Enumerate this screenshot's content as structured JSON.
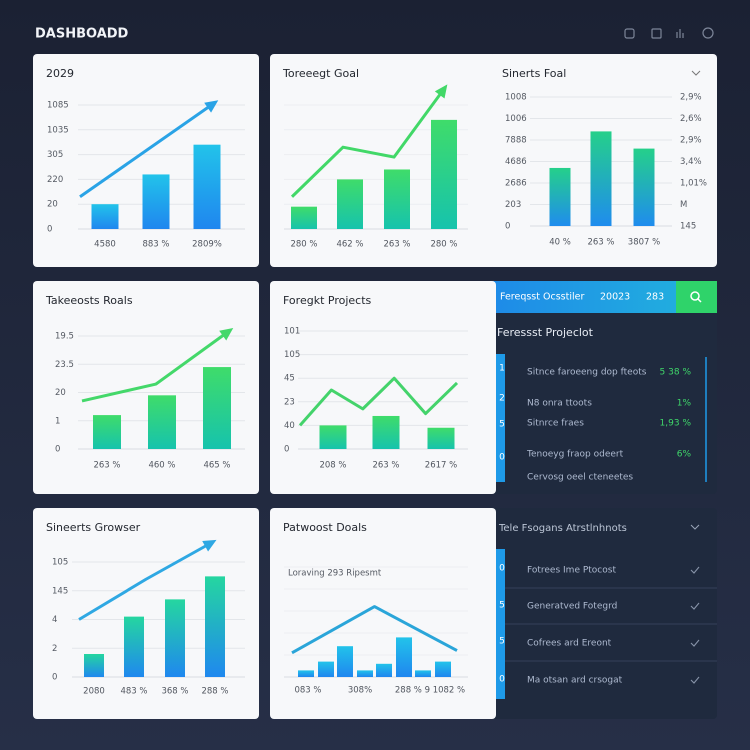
{
  "header": {
    "title": "DASHBOADD"
  },
  "panels": [
    {
      "type": "bar",
      "title": "2029",
      "ylim": [
        0,
        5
      ],
      "yticks": [
        0,
        {
          "value": 1,
          "label": "20"
        },
        {
          "value": 2,
          "label": "220"
        },
        {
          "value": 3,
          "label": "305"
        },
        {
          "value": 4,
          "label": "1035"
        },
        {
          "value": 5,
          "label": "1085"
        }
      ],
      "categories": [
        "4580",
        "883 %",
        "2809%"
      ],
      "values": [
        1.0,
        2.2,
        3.4
      ],
      "color": "#22c3ea",
      "color2": "#1f86ef",
      "trend": {
        "values": [
          1.3,
          3.2,
          5.1
        ],
        "color": "#2aa3e6"
      }
    },
    {
      "type": "bar",
      "title": "Toreeegt Goal",
      "ylim": [
        0,
        5
      ],
      "categories": [
        "280 %",
        "462 %",
        "263 %",
        "280 %"
      ],
      "values": [
        0.9,
        2.0,
        2.4,
        4.4
      ],
      "color": "#3fdc6a",
      "color2": "#16c3ad",
      "trend": {
        "values": [
          1.3,
          3.3,
          2.9,
          5.7
        ],
        "color": "#42d868"
      }
    },
    {
      "type": "bar",
      "title": "Sinerts Foal",
      "ylim": [
        0,
        6
      ],
      "yticks": [
        0,
        {
          "value": 1,
          "label": "203"
        },
        {
          "value": 2,
          "label": "2686"
        },
        {
          "value": 3,
          "label": "4686"
        },
        {
          "value": 4,
          "label": "7888"
        },
        {
          "value": 5,
          "label": "1006"
        },
        {
          "value": 6,
          "label": "1008"
        }
      ],
      "y2lim": [
        0,
        6
      ],
      "y2ticks": [
        {
          "value": 0,
          "label": "145"
        },
        {
          "value": 1,
          "label": "M"
        },
        {
          "value": 2,
          "label": "1,01%"
        },
        {
          "value": 3,
          "label": "3,4%"
        },
        {
          "value": 4,
          "label": "2,9%"
        },
        {
          "value": 5,
          "label": "2,6%"
        },
        {
          "value": 6,
          "label": "2,9%"
        }
      ],
      "categories": [
        "40 %",
        "263 %",
        "3807 %"
      ],
      "values": [
        2.7,
        4.4,
        3.6
      ],
      "color": "#25d08a",
      "color2": "#1f8cee"
    },
    {
      "type": "bar",
      "title": "Takeeosts Roals",
      "ylim": [
        0,
        4
      ],
      "yticks": [
        0,
        1,
        {
          "value": 2,
          "label": "20"
        },
        {
          "value": 3,
          "label": "23.5"
        },
        {
          "value": 4,
          "label": "19.5"
        }
      ],
      "categories": [
        "263 %",
        "460 %",
        "465 %"
      ],
      "values": [
        1.2,
        1.9,
        2.9
      ],
      "color": "#3fdc6a",
      "color2": "#16c3ad",
      "trend": {
        "values": [
          1.7,
          2.3,
          4.2
        ],
        "color": "#44d86a"
      }
    },
    {
      "type": "bar",
      "title": "Foregkt Projects",
      "ylim": [
        0,
        5
      ],
      "yticks": [
        0,
        {
          "value": 1,
          "label": "40"
        },
        {
          "value": 2,
          "label": "23"
        },
        {
          "value": 3,
          "label": "45"
        },
        {
          "value": 4,
          "label": "105"
        },
        {
          "value": 5,
          "label": "101"
        }
      ],
      "categories": [
        "208 %",
        "263 %",
        "2617 %"
      ],
      "values": [
        1.0,
        1.4,
        0.9
      ],
      "color": "#3fdc6a",
      "color2": "#16c3ad",
      "trend": {
        "values": [
          1.0,
          2.5,
          1.7,
          3.0,
          1.5,
          2.8
        ],
        "color": "#44d36b"
      }
    },
    {
      "type": "bar",
      "title": "Sineerts Growser",
      "ylim": [
        0,
        4
      ],
      "yticks": [
        0,
        {
          "value": 1,
          "label": "2"
        },
        {
          "value": 2,
          "label": "4"
        },
        {
          "value": 3,
          "label": "145"
        },
        {
          "value": 4,
          "label": "105"
        }
      ],
      "categories": [
        "2080",
        "483 %",
        "368 %",
        "288 %"
      ],
      "values": [
        0.8,
        2.1,
        2.7,
        3.5
      ],
      "color": "#25d6a0",
      "color2": "#1f88ef",
      "trend": {
        "values": [
          2.0,
          3.4,
          4.7
        ],
        "color": "#2fa8e3"
      }
    },
    {
      "type": "bar",
      "title": "Patwoost Doals",
      "subtitle": "Loraving 293 Ripesmt",
      "ylim": [
        0,
        5
      ],
      "x_labels": [
        "083 %",
        "308%",
        "288 % 9 1082 %"
      ],
      "values": [
        0.3,
        0.7,
        1.4,
        0.3,
        0.6,
        1.8,
        0.3,
        0.7
      ],
      "color": "#22c3ea",
      "color2": "#1f86ef",
      "trend": {
        "values": [
          1.1,
          3.2,
          1.2
        ],
        "color": "#2aa5d9"
      }
    }
  ],
  "forecast_panel": {
    "search_label": "Fereqsst Ocsstiler",
    "search_values": [
      "20023",
      "283"
    ],
    "title": "Feressst Projeclot",
    "markers": [
      1,
      2,
      5,
      0
    ],
    "rows": [
      {
        "label": "Sitnce faroeeng dop fteots",
        "value": "5 38 %"
      },
      {
        "label": "N8 onra ttoots",
        "value": "1%"
      },
      {
        "label": "Sitnrce fraes",
        "value": "1,93 %"
      },
      {
        "label": "Tenoeyg fraop odeert",
        "value": "6%"
      },
      {
        "label": "Cervosg oeel cteneetes"
      }
    ]
  },
  "list_panel": {
    "title": "Tele Fsogans Atrstlnhnots",
    "markers": [
      0,
      5,
      5,
      0
    ],
    "rows": [
      "Fotrees Ime Ptocost",
      "Generatved Fotegrd",
      "Cofrees ard Ereont",
      "Ma otsan ard crsogat"
    ]
  }
}
